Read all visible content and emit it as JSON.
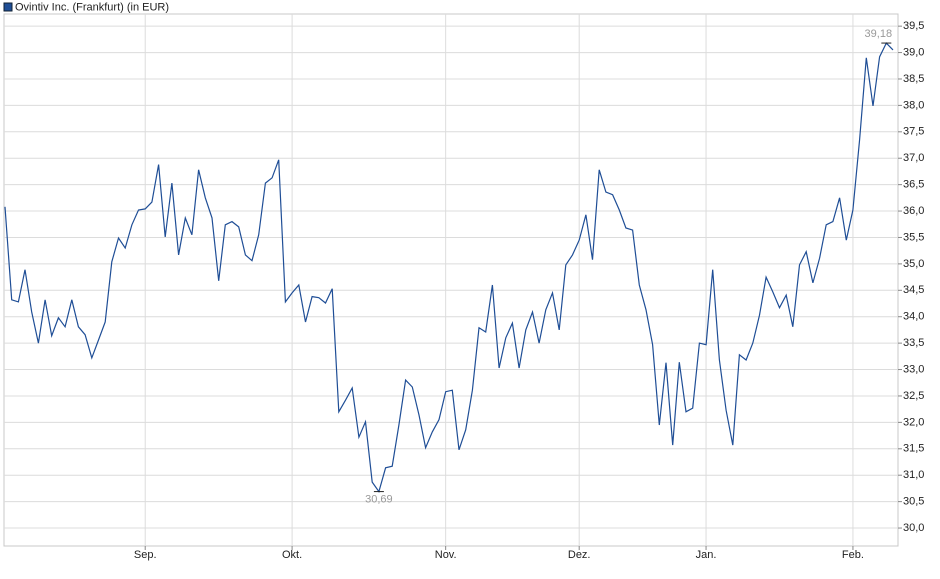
{
  "chart_data": {
    "type": "line",
    "series": [
      {
        "name": "Ovintiv Inc. (Frankfurt) (in EUR)",
        "color": "#1f4e96",
        "values": [
          36.08,
          34.32,
          34.28,
          34.89,
          34.09,
          33.5,
          34.32,
          33.64,
          33.98,
          33.81,
          34.32,
          33.81,
          33.66,
          33.22,
          33.56,
          33.9,
          35.04,
          35.49,
          35.3,
          35.74,
          36.02,
          36.04,
          36.17,
          36.88,
          35.51,
          36.53,
          35.17,
          35.87,
          35.55,
          36.78,
          36.25,
          35.87,
          34.68,
          35.74,
          35.8,
          35.7,
          35.17,
          35.06,
          35.55,
          36.53,
          36.63,
          36.97,
          34.28,
          34.45,
          34.6,
          33.9,
          34.38,
          34.36,
          34.26,
          34.53,
          32.2,
          32.42,
          32.65,
          31.72,
          32.01,
          30.87,
          30.69,
          31.14,
          31.17,
          31.95,
          32.8,
          32.67,
          32.14,
          31.52,
          31.82,
          32.05,
          32.58,
          32.61,
          31.48,
          31.86,
          32.61,
          33.79,
          33.71,
          34.6,
          33.03,
          33.6,
          33.88,
          33.03,
          33.75,
          34.09,
          33.5,
          34.13,
          34.45,
          33.75,
          34.98,
          35.17,
          35.45,
          35.93,
          35.08,
          36.78,
          36.36,
          36.31,
          36.02,
          35.68,
          35.64,
          34.6,
          34.13,
          33.47,
          31.95,
          33.13,
          31.57,
          33.14,
          32.2,
          32.27,
          33.5,
          33.47,
          34.89,
          33.18,
          32.23,
          31.57,
          33.28,
          33.18,
          33.5,
          34.03,
          34.75,
          34.47,
          34.17,
          34.41,
          33.81,
          34.98,
          35.23,
          34.64,
          35.11,
          35.74,
          35.8,
          36.25,
          35.45,
          36.02,
          37.35,
          38.9,
          37.99,
          38.92,
          39.18,
          39.05
        ]
      }
    ],
    "xlim": [
      0,
      133
    ],
    "xticks": [
      {
        "value": 21,
        "label": "Sep."
      },
      {
        "value": 43,
        "label": "Okt."
      },
      {
        "value": 66,
        "label": "Nov."
      },
      {
        "value": 86,
        "label": "Dez."
      },
      {
        "value": 105,
        "label": "Jan."
      },
      {
        "value": 127,
        "label": "Feb."
      }
    ],
    "ylim": [
      29.66,
      39.73
    ],
    "yticks": [
      {
        "value": 30.0,
        "label": "30,0"
      },
      {
        "value": 30.5,
        "label": "30,5"
      },
      {
        "value": 31.0,
        "label": "31,0"
      },
      {
        "value": 31.5,
        "label": "31,5"
      },
      {
        "value": 32.0,
        "label": "32,0"
      },
      {
        "value": 32.5,
        "label": "32,5"
      },
      {
        "value": 33.0,
        "label": "33,0"
      },
      {
        "value": 33.5,
        "label": "33,5"
      },
      {
        "value": 34.0,
        "label": "34,0"
      },
      {
        "value": 34.5,
        "label": "34,5"
      },
      {
        "value": 35.0,
        "label": "35,0"
      },
      {
        "value": 35.5,
        "label": "35,5"
      },
      {
        "value": 36.0,
        "label": "36,0"
      },
      {
        "value": 36.5,
        "label": "36,5"
      },
      {
        "value": 37.0,
        "label": "37,0"
      },
      {
        "value": 37.5,
        "label": "37,5"
      },
      {
        "value": 38.0,
        "label": "38,0"
      },
      {
        "value": 38.5,
        "label": "38,5"
      },
      {
        "value": 39.0,
        "label": "39,0"
      },
      {
        "value": 39.5,
        "label": "39,5"
      }
    ],
    "annotations": [
      {
        "value": 39.18,
        "label": "39,18"
      },
      {
        "value": 30.69,
        "label": "30,69"
      }
    ],
    "grid": true
  }
}
